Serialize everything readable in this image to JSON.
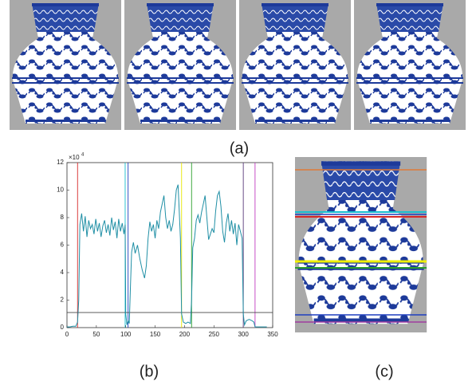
{
  "labels": {
    "a": "(a)",
    "b": "(b)",
    "c": "(c)"
  },
  "chart_data": {
    "type": "line",
    "multiplier": {
      "base": "×10",
      "exponent": "4"
    },
    "x": [
      0,
      5,
      10,
      15,
      18,
      20,
      22,
      25,
      28,
      31,
      34,
      37,
      40,
      43,
      46,
      49,
      52,
      55,
      58,
      61,
      64,
      67,
      70,
      73,
      76,
      79,
      82,
      85,
      88,
      91,
      94,
      97,
      99,
      100,
      102,
      104,
      106,
      108,
      110,
      113,
      116,
      120,
      124,
      128,
      132,
      135,
      138,
      141,
      144,
      147,
      150,
      153,
      156,
      159,
      162,
      165,
      168,
      171,
      174,
      177,
      180,
      183,
      186,
      189,
      191,
      193,
      195,
      198,
      202,
      206,
      210,
      212,
      214,
      217,
      220,
      223,
      226,
      229,
      232,
      235,
      238,
      241,
      244,
      247,
      250,
      253,
      256,
      259,
      262,
      265,
      268,
      271,
      274,
      277,
      280,
      283,
      286,
      289,
      292,
      295,
      298,
      300,
      302,
      305,
      310,
      315,
      318,
      320,
      325,
      330,
      335,
      340
    ],
    "series": [
      {
        "color": "#1f8fa5",
        "values": [
          0.05,
          0.05,
          0.1,
          0.1,
          0.4,
          2,
          7.5,
          8.3,
          7.0,
          8.1,
          6.6,
          7.8,
          7.2,
          7.5,
          6.8,
          7.9,
          7.0,
          7.6,
          6.6,
          7.4,
          7.8,
          6.9,
          7.5,
          6.7,
          8.0,
          7.1,
          7.7,
          6.5,
          7.9,
          7.0,
          7.6,
          6.8,
          7.5,
          1,
          0.2,
          0.5,
          0.3,
          3,
          5.5,
          6.2,
          5.4,
          6.0,
          5.0,
          4.2,
          3.6,
          4.5,
          6.5,
          7.7,
          7.0,
          7.5,
          6.5,
          7.8,
          7.2,
          8.4,
          9.0,
          9.6,
          8.0,
          7.2,
          7.8,
          7.0,
          7.5,
          8.6,
          10.0,
          10.4,
          8.5,
          6.5,
          1,
          0.4,
          0.3,
          0.4,
          0.3,
          2,
          5.8,
          6.5,
          7.8,
          8.2,
          7.6,
          8.4,
          9.0,
          9.6,
          8.0,
          6.4,
          6.8,
          7.2,
          6.9,
          8.5,
          9.6,
          9.9,
          8.8,
          7.0,
          6.2,
          7.6,
          8.3,
          7.0,
          7.8,
          6.8,
          7.6,
          6.0,
          7.5,
          7.0,
          6.5,
          1,
          0.2,
          0.5,
          0.6,
          0.5,
          0.4,
          0.05,
          0.05,
          0.05,
          0.05,
          0.05
        ]
      }
    ],
    "vlines": [
      {
        "x": 18,
        "color": "#d62728"
      },
      {
        "x": 99,
        "color": "#17becf"
      },
      {
        "x": 104,
        "color": "#1f3fbf"
      },
      {
        "x": 195,
        "color": "#e8e800"
      },
      {
        "x": 212,
        "color": "#2ca02c"
      },
      {
        "x": 300,
        "color": "#5a3a7a"
      },
      {
        "x": 320,
        "color": "#c03cc0"
      }
    ],
    "hline": {
      "y": 1.1,
      "color": "#444444"
    },
    "xlim": [
      0,
      350
    ],
    "xticks": [
      0,
      50,
      100,
      150,
      200,
      250,
      300,
      350
    ],
    "ylim": [
      0,
      12
    ],
    "yticks": [
      0,
      2,
      4,
      6,
      8,
      10,
      12
    ]
  }
}
